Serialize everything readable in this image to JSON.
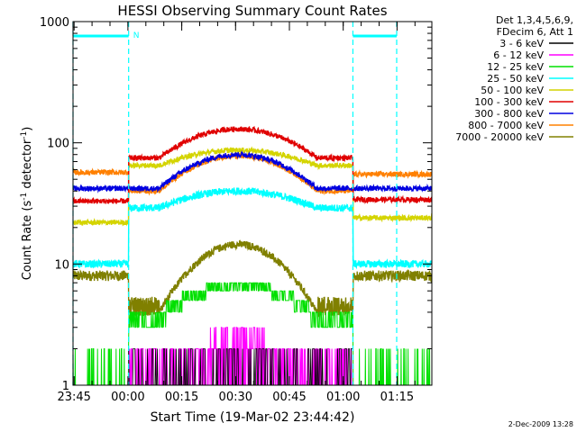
{
  "chart_data": {
    "type": "line",
    "title": "HESSI Observing Summary Count Rates",
    "xlabel": "Start Time (19-Mar-02 23:44:42)",
    "ylabel_main": "Count Rate (s",
    "ylabel_sup1": "-1",
    "ylabel_mid": " detector",
    "ylabel_sup2": "-1",
    "ylabel_end": ")",
    "yscale": "log",
    "ylim": [
      1,
      1000
    ],
    "xlim_minutes": [
      0,
      100
    ],
    "yticks": [
      {
        "value": 1,
        "label": "1"
      },
      {
        "value": 10,
        "label": "10"
      },
      {
        "value": 100,
        "label": "100"
      },
      {
        "value": 1000,
        "label": "1000"
      }
    ],
    "xticks": [
      {
        "minute": 0.3,
        "label": "23:45"
      },
      {
        "minute": 15.3,
        "label": "00:00"
      },
      {
        "minute": 30.3,
        "label": "00:15"
      },
      {
        "minute": 45.3,
        "label": "00:30"
      },
      {
        "minute": 60.3,
        "label": "00:45"
      },
      {
        "minute": 75.3,
        "label": "01:00"
      },
      {
        "minute": 90.3,
        "label": "01:15"
      }
    ],
    "legend_header": [
      "Det 1,3,4,5,6,9,",
      "FDecim 6, Att 1"
    ],
    "legend_placement": "outside-right",
    "series": [
      {
        "name": "3 - 6 keV",
        "color": "#000000"
      },
      {
        "name": "6 - 12 keV",
        "color": "#ff00ff"
      },
      {
        "name": "12 - 25 keV",
        "color": "#00e000"
      },
      {
        "name": "25 - 50 keV",
        "color": "#00ffff"
      },
      {
        "name": "50 - 100 keV",
        "color": "#d4d400"
      },
      {
        "name": "100 - 300 keV",
        "color": "#e00000"
      },
      {
        "name": "300 - 800 keV",
        "color": "#0000e0"
      },
      {
        "name": "800 - 7000 keV",
        "color": "#ff8000"
      },
      {
        "name": "7000 - 20000 keV",
        "color": "#808000"
      }
    ],
    "night_intervals_minutes": [
      [
        0,
        15.5
      ],
      [
        78,
        90.2
      ]
    ],
    "flag_label": "N",
    "flag_level": 760,
    "series_levels": {
      "night_left": {
        "red": 33,
        "blue": 42,
        "orange": 57,
        "yellow": 22,
        "cyan": 10,
        "olive": 8
      },
      "day_edge": {
        "red": 75,
        "yellow": 65,
        "orange": 40,
        "blue": 42,
        "cyan": 29,
        "olive": 4
      },
      "day_peak": {
        "red": 130,
        "yellow": 87,
        "orange": 78,
        "blue": 80,
        "cyan": 40,
        "olive": 14.5
      },
      "night_right": {
        "red": 34,
        "blue": 42,
        "orange": 55,
        "yellow": 24,
        "cyan": 10,
        "olive": 8
      }
    }
  },
  "timestamp": "2-Dec-2009 13:28"
}
